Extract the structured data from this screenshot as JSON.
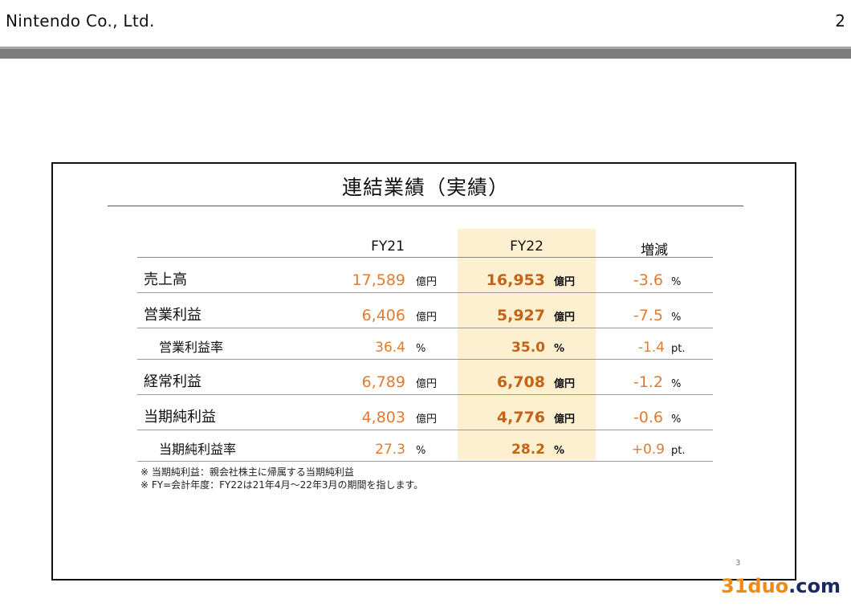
{
  "header": {
    "company": "Nintendo Co., Ltd.",
    "page_number": "2"
  },
  "slide": {
    "title": "連結業績（実績）",
    "columns": [
      "FY21",
      "FY22",
      "増減"
    ],
    "rows": [
      {
        "label": "売上高",
        "fy21": "17,589",
        "fy21_unit": "億円",
        "fy22": "16,953",
        "fy22_unit": "億円",
        "change": "-3.6",
        "change_unit": "%"
      },
      {
        "label": "営業利益",
        "fy21": "6,406",
        "fy21_unit": "億円",
        "fy22": "5,927",
        "fy22_unit": "億円",
        "change": "-7.5",
        "change_unit": "%"
      },
      {
        "label": "営業利益率",
        "fy21": "36.4",
        "fy21_unit": "%",
        "fy22": "35.0",
        "fy22_unit": "%",
        "change": "-1.4",
        "change_unit": "pt."
      },
      {
        "label": "経常利益",
        "fy21": "6,789",
        "fy21_unit": "億円",
        "fy22": "6,708",
        "fy22_unit": "億円",
        "change": "-1.2",
        "change_unit": "%"
      },
      {
        "label": "当期純利益",
        "fy21": "4,803",
        "fy21_unit": "億円",
        "fy22": "4,776",
        "fy22_unit": "億円",
        "change": "-0.6",
        "change_unit": "%"
      },
      {
        "label": "当期純利益率",
        "fy21": "27.3",
        "fy21_unit": "%",
        "fy22": "28.2",
        "fy22_unit": "%",
        "change": "+0.9",
        "change_unit": "pt."
      }
    ],
    "notes": [
      "※ 当期純利益：親会社株主に帰属する当期純利益",
      "※ FY=会計年度：FY22は21年4月～22年3月の期間を指します。"
    ],
    "slide_number": "3"
  },
  "watermark": {
    "part1": "31duo",
    "part2": ".com"
  },
  "colors": {
    "value": "#e07b32",
    "value_bold": "#c46216",
    "highlight": "#fdf0d0",
    "bar": "#7c7c7c"
  }
}
